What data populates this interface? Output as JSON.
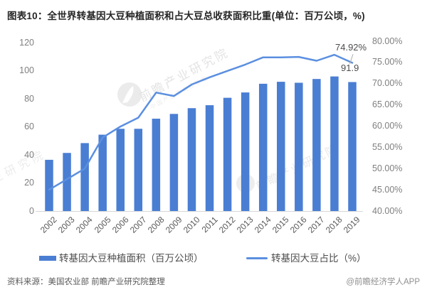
{
  "title": "图表10：全世界转基因大豆种植面积和占大豆总收获面积比重(单位：百万公顷，%)",
  "chart_data": {
    "type": "combo",
    "categories": [
      "2002",
      "2003",
      "2004",
      "2005",
      "2006",
      "2007",
      "2008",
      "2009",
      "2010",
      "2011",
      "2012",
      "2013",
      "2014",
      "2015",
      "2016",
      "2017",
      "2018",
      "2019"
    ],
    "series": [
      {
        "name": "转基因大豆种植面积（百万公顷）",
        "type": "bar",
        "axis": "left",
        "values": [
          36.5,
          41.4,
          48.4,
          54.4,
          58.6,
          58.6,
          65.8,
          69.2,
          73.3,
          75.4,
          80.7,
          84.5,
          90.7,
          92.1,
          91.4,
          94.1,
          95.9,
          91.9
        ]
      },
      {
        "name": "转基因大豆占比（%）",
        "type": "line",
        "axis": "right",
        "values": [
          45.0,
          47.5,
          50.0,
          57.3,
          59.9,
          62.0,
          67.9,
          67.1,
          69.8,
          71.5,
          73.0,
          74.5,
          76.2,
          76.2,
          76.3,
          75.4,
          76.8,
          74.92
        ]
      }
    ],
    "left_axis": {
      "min": 0,
      "max": 120,
      "step": 20,
      "tick_labels": [
        "0",
        "20",
        "40",
        "60",
        "80",
        "100",
        "120"
      ]
    },
    "right_axis": {
      "min": 40,
      "max": 80,
      "step": 5,
      "tick_labels": [
        "40.00%",
        "45.00%",
        "50.00%",
        "55.00%",
        "60.00%",
        "65.00%",
        "70.00%",
        "75.00%",
        "80.00%"
      ]
    },
    "grid": false,
    "legend_position": "bottom",
    "annotations": [
      {
        "text": "74.92%",
        "series": "转基因大豆占比（%）",
        "category": "2019"
      },
      {
        "text": "91.9",
        "series": "转基因大豆种植面积（百万公顷）",
        "category": "2019"
      }
    ]
  },
  "legend": {
    "bar_label": "转基因大豆种植面积（百万公顷）",
    "line_label": "转基因大豆占比（%）"
  },
  "annotations": {
    "line_value": "74.92%",
    "bar_value": "91.9"
  },
  "watermark": {
    "brand": "前瞻产业研究院",
    "brand_sub": "中国产业咨询领导者",
    "fragment": "业研究院"
  },
  "footer": {
    "source": "资料来源：美国农业部 前瞻产业研究院整理",
    "credit": "@前瞻经济学人APP"
  },
  "colors": {
    "bar": "#4a7ed3",
    "line": "#5b8fe0",
    "axis_text": "#7f7f7f",
    "baseline": "#d6d6d6",
    "leader": "#ababab"
  }
}
